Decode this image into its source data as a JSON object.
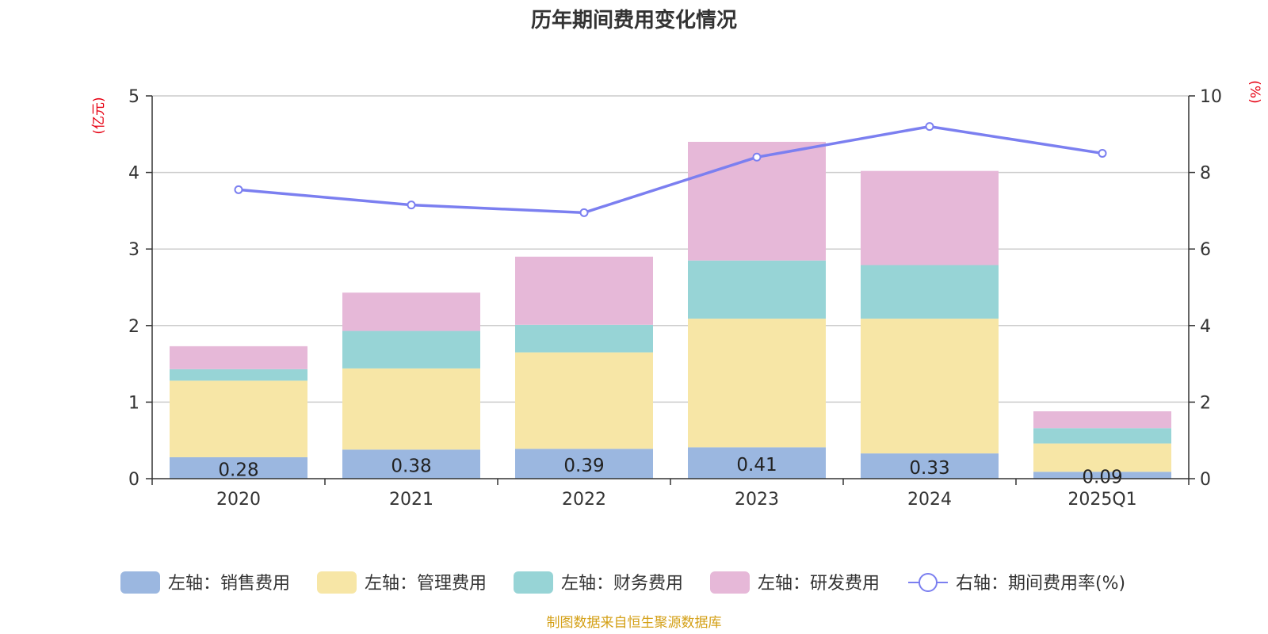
{
  "chart_data": {
    "type": "bar",
    "stacked": true,
    "title": "历年期间费用变化情况",
    "categories": [
      "2020",
      "2021",
      "2022",
      "2023",
      "2024",
      "2025Q1"
    ],
    "left_axis": {
      "unit": "(亿元)",
      "ylim": [
        0,
        5
      ],
      "ticks": [
        "0",
        "1",
        "2",
        "3",
        "4",
        "5"
      ]
    },
    "right_axis": {
      "unit": "(%)",
      "ylim": [
        0,
        10
      ],
      "ticks": [
        "0",
        "2",
        "4",
        "6",
        "8",
        "10"
      ]
    },
    "series": [
      {
        "name": "左轴：销售费用",
        "type": "bar",
        "axis": "left",
        "color": "#9bb7e0",
        "values": [
          0.28,
          0.38,
          0.39,
          0.41,
          0.33,
          0.09
        ],
        "labels": [
          "0.28",
          "0.38",
          "0.39",
          "0.41",
          "0.33",
          "0.09"
        ]
      },
      {
        "name": "左轴：管理费用",
        "type": "bar",
        "axis": "left",
        "color": "#f7e6a6",
        "values": [
          1.0,
          1.06,
          1.26,
          1.68,
          1.76,
          0.37
        ]
      },
      {
        "name": "左轴：财务费用",
        "type": "bar",
        "axis": "left",
        "color": "#97d4d6",
        "values": [
          0.15,
          0.49,
          0.36,
          0.76,
          0.7,
          0.2
        ]
      },
      {
        "name": "左轴：研发费用",
        "type": "bar",
        "axis": "left",
        "color": "#e6b8d8",
        "values": [
          0.3,
          0.5,
          0.89,
          1.55,
          1.23,
          0.22
        ]
      },
      {
        "name": "右轴：期间费用率(%)",
        "type": "line",
        "axis": "right",
        "color": "#7b7ff0",
        "values": [
          7.55,
          7.15,
          6.95,
          8.4,
          9.2,
          8.5
        ]
      }
    ],
    "legend_position": "bottom",
    "grid": true
  },
  "source_note": "制图数据来自恒生聚源数据库"
}
